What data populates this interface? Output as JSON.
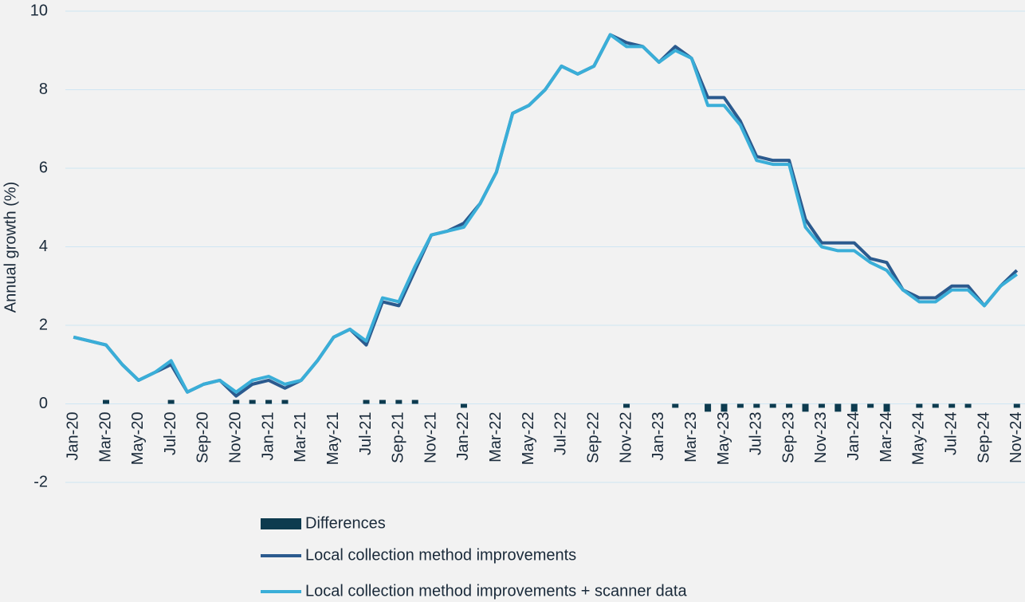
{
  "chart_data": {
    "type": "line",
    "ylabel": "Annual growth (%)",
    "categories": [
      "Jan-20",
      null,
      "Mar-20",
      null,
      "May-20",
      null,
      "Jul-20",
      null,
      "Sep-20",
      null,
      "Nov-20",
      null,
      "Jan-21",
      null,
      "Mar-21",
      null,
      "May-21",
      null,
      "Jul-21",
      null,
      "Sep-21",
      null,
      "Nov-21",
      null,
      "Jan-22",
      null,
      "Mar-22",
      null,
      "May-22",
      null,
      "Jul-22",
      null,
      "Sep-22",
      null,
      "Nov-22",
      null,
      "Jan-23",
      null,
      "Mar-23",
      null,
      "May-23",
      null,
      "Jul-23",
      null,
      "Sep-23",
      null,
      "Nov-23",
      null,
      "Jan-24",
      null,
      "Mar-24",
      null,
      "May-24",
      null,
      "Jul-24",
      null,
      "Sep-24",
      null,
      "Nov-24"
    ],
    "series": [
      {
        "name": "Differences",
        "type": "bar",
        "color": "#0d3b4f",
        "values": [
          0,
          0,
          0.1,
          0,
          0,
          0,
          0.1,
          0,
          0,
          0,
          0.1,
          0.1,
          0.1,
          0.1,
          0,
          0,
          0,
          0,
          0.1,
          0.1,
          0.1,
          0.1,
          0,
          0,
          -0.1,
          0,
          0,
          0,
          0,
          0,
          0,
          0,
          0,
          0,
          -0.1,
          0,
          0,
          -0.1,
          0,
          -0.2,
          -0.2,
          -0.1,
          -0.1,
          -0.1,
          -0.1,
          -0.2,
          -0.1,
          -0.2,
          -0.2,
          -0.1,
          -0.2,
          0,
          -0.1,
          -0.1,
          -0.1,
          -0.1,
          0,
          0,
          -0.1
        ]
      },
      {
        "name": "Local collection method improvements",
        "type": "line",
        "color": "#2b5a8e",
        "values": [
          1.7,
          1.6,
          1.5,
          1.0,
          0.6,
          0.8,
          1.0,
          0.3,
          0.5,
          0.6,
          0.2,
          0.5,
          0.6,
          0.4,
          0.6,
          1.1,
          1.7,
          1.9,
          1.5,
          2.6,
          2.5,
          3.4,
          4.3,
          4.4,
          4.6,
          5.1,
          5.9,
          7.4,
          7.6,
          8.0,
          8.6,
          8.4,
          8.6,
          9.4,
          9.2,
          9.1,
          8.7,
          9.1,
          8.8,
          7.8,
          7.8,
          7.2,
          6.3,
          6.2,
          6.2,
          4.7,
          4.1,
          4.1,
          4.1,
          3.7,
          3.6,
          2.9,
          2.7,
          2.7,
          3.0,
          3.0,
          2.5,
          3.0,
          3.4
        ]
      },
      {
        "name": "Local collection method improvements + scanner data",
        "type": "line",
        "color": "#3aaed8",
        "values": [
          1.7,
          1.6,
          1.5,
          1.0,
          0.6,
          0.8,
          1.1,
          0.3,
          0.5,
          0.6,
          0.3,
          0.6,
          0.7,
          0.5,
          0.6,
          1.1,
          1.7,
          1.9,
          1.6,
          2.7,
          2.6,
          3.5,
          4.3,
          4.4,
          4.5,
          5.1,
          5.9,
          7.4,
          7.6,
          8.0,
          8.6,
          8.4,
          8.6,
          9.4,
          9.1,
          9.1,
          8.7,
          9.0,
          8.8,
          7.6,
          7.6,
          7.1,
          6.2,
          6.1,
          6.1,
          4.5,
          4.0,
          3.9,
          3.9,
          3.6,
          3.4,
          2.9,
          2.6,
          2.6,
          2.9,
          2.9,
          2.5,
          3.0,
          3.3
        ]
      }
    ],
    "ylim": [
      -2,
      10
    ],
    "yticks": [
      -2,
      0,
      2,
      4,
      6,
      8,
      10
    ],
    "grid": true
  }
}
